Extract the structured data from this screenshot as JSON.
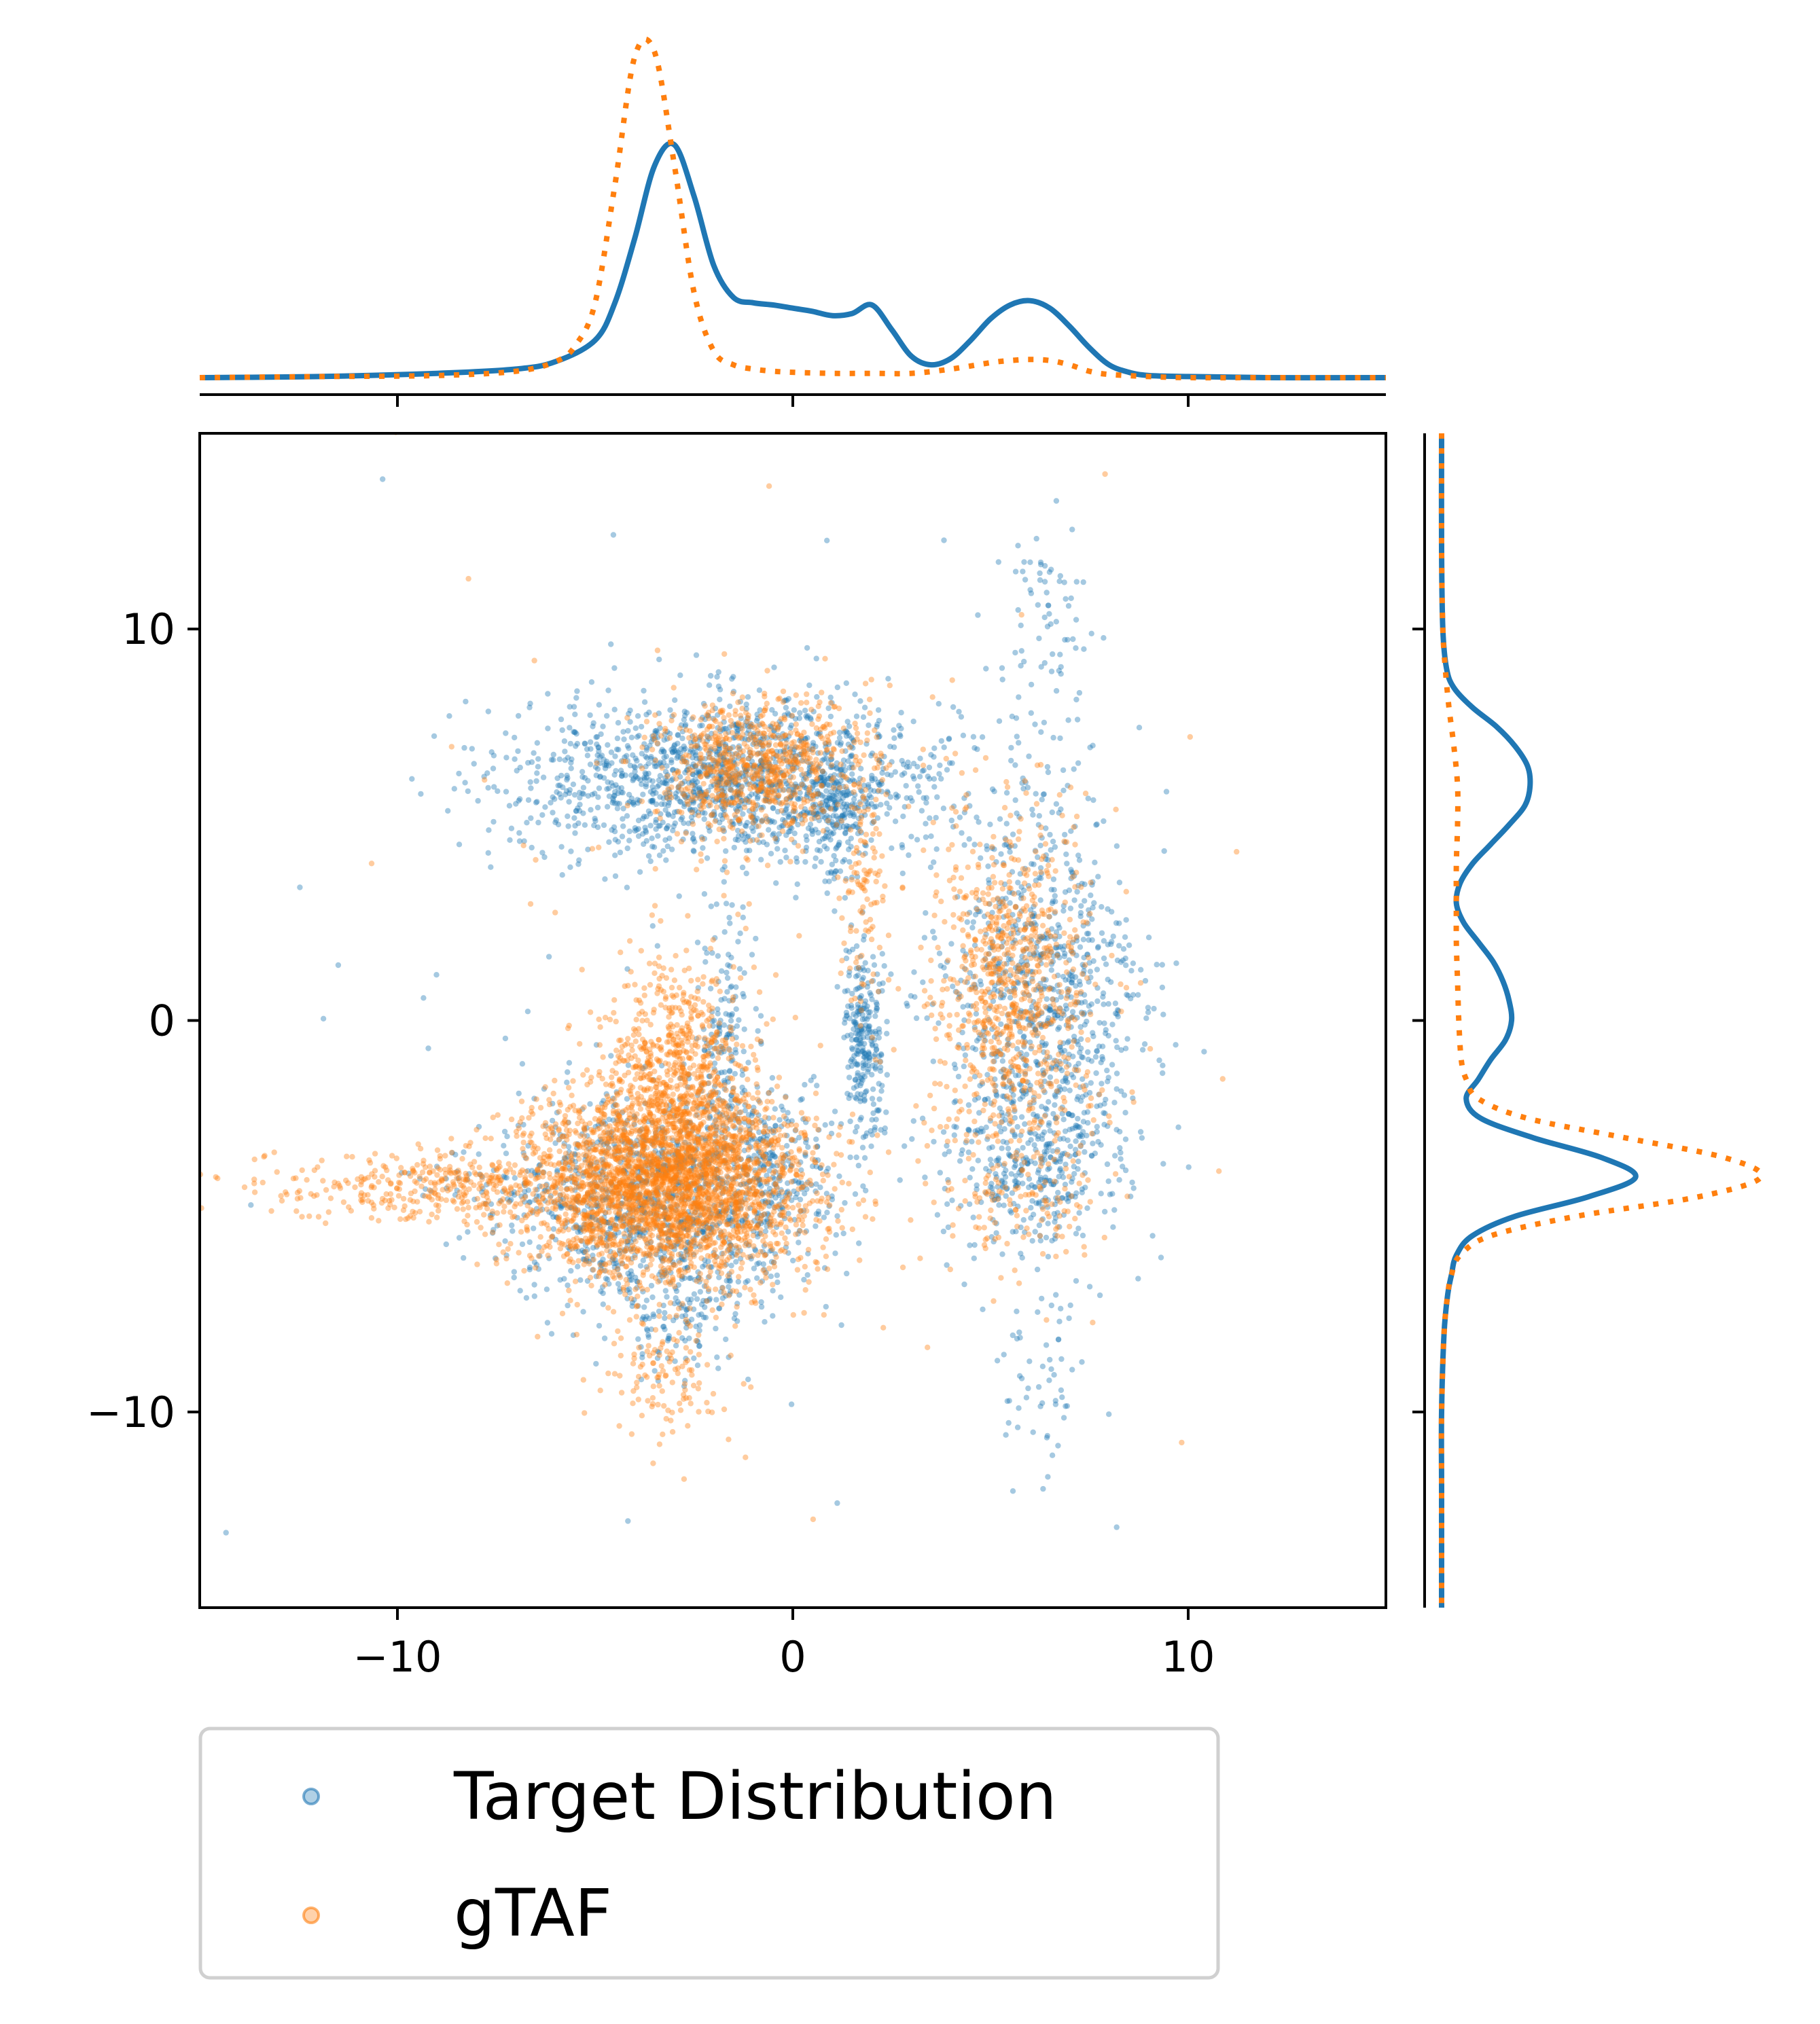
{
  "chart_data": {
    "type": "scatter",
    "title": "",
    "xlabel": "",
    "ylabel": "",
    "xlim": [
      -15,
      15
    ],
    "ylim": [
      -15,
      15
    ],
    "x_ticks": [
      {
        "value": -10,
        "label": "−10"
      },
      {
        "value": 0,
        "label": "0"
      },
      {
        "value": 10,
        "label": "10"
      }
    ],
    "y_ticks": [
      {
        "value": 10,
        "label": "10"
      },
      {
        "value": 0,
        "label": "0"
      },
      {
        "value": -10,
        "label": "−10"
      }
    ],
    "grid": false,
    "legend_position": "below-left",
    "series": [
      {
        "name": "Target Distribution",
        "color": "#1f77b4",
        "marker": "dot",
        "alpha": 0.4,
        "clusters": [
          {
            "center": [
              -1.5,
              6.2
            ],
            "spread": [
              2.8,
              1.0
            ],
            "count": 1500
          },
          {
            "center": [
              1.0,
              5.2
            ],
            "spread": [
              0.4,
              0.8
            ],
            "count": 150
          },
          {
            "center": [
              6.3,
              0.3
            ],
            "spread": [
              1.3,
              2.6
            ],
            "count": 900
          },
          {
            "center": [
              6.0,
              -3.8
            ],
            "spread": [
              1.0,
              1.0
            ],
            "count": 250
          },
          {
            "center": [
              -3.2,
              -4.5
            ],
            "spread": [
              1.9,
              1.3
            ],
            "count": 1100
          },
          {
            "center": [
              -3.0,
              -7.5
            ],
            "spread": [
              0.8,
              0.8
            ],
            "count": 120
          },
          {
            "center": [
              -1.7,
              -0.5
            ],
            "spread": [
              0.35,
              1.6
            ],
            "count": 150
          },
          {
            "center": [
              -0.5,
              -3.8
            ],
            "spread": [
              0.7,
              0.9
            ],
            "count": 150
          },
          {
            "center": [
              1.8,
              -0.4
            ],
            "spread": [
              0.25,
              1.3
            ],
            "count": 260
          },
          {
            "center": [
              6.4,
              9.3
            ],
            "spread": [
              0.6,
              1.6
            ],
            "count": 80
          },
          {
            "center": [
              6.3,
              -9.0
            ],
            "spread": [
              0.6,
              1.5
            ],
            "count": 60
          },
          {
            "center": [
              -7.0,
              -4.4
            ],
            "spread": [
              1.6,
              0.5
            ],
            "count": 60
          },
          {
            "center": [
              0,
              0
            ],
            "spread": [
              5.5,
              5.5
            ],
            "count": 90
          }
        ]
      },
      {
        "name": "gTAF",
        "color": "#ff7f0e",
        "marker": "dot",
        "alpha": 0.4,
        "clusters": [
          {
            "center": [
              -3.2,
              -4.2
            ],
            "spread": [
              1.8,
              1.2
            ],
            "count": 2800
          },
          {
            "center": [
              -3.0,
              -1.5
            ],
            "spread": [
              0.9,
              1.5
            ],
            "count": 700
          },
          {
            "center": [
              -8.5,
              -4.3
            ],
            "spread": [
              2.8,
              0.5
            ],
            "count": 450
          },
          {
            "center": [
              -1.0,
              6.5
            ],
            "spread": [
              1.3,
              0.9
            ],
            "count": 750
          },
          {
            "center": [
              1.8,
              3.5
            ],
            "spread": [
              0.3,
              1.8
            ],
            "count": 120
          },
          {
            "center": [
              5.6,
              0.6
            ],
            "spread": [
              1.0,
              2.2
            ],
            "count": 800
          },
          {
            "center": [
              -3.3,
              -9.2
            ],
            "spread": [
              0.8,
              0.9
            ],
            "count": 120
          },
          {
            "center": [
              5.8,
              -4.5
            ],
            "spread": [
              1.0,
              1.0
            ],
            "count": 120
          },
          {
            "center": [
              0,
              0
            ],
            "spread": [
              5.5,
              5.5
            ],
            "count": 100
          }
        ]
      }
    ],
    "marginal_x": {
      "type": "line",
      "series": [
        {
          "name": "Target Distribution",
          "color": "#1f77b4",
          "style": "solid",
          "x": [
            -15,
            -12,
            -9,
            -7,
            -6,
            -5,
            -4.5,
            -4,
            -3.5,
            -3,
            -2.5,
            -2,
            -1.5,
            -1,
            -0.5,
            0,
            0.5,
            1,
            1.5,
            2,
            2.5,
            3,
            3.5,
            4,
            4.5,
            5,
            5.5,
            6,
            6.5,
            7,
            7.5,
            8,
            8.5,
            9,
            10,
            12,
            15
          ],
          "y": [
            0.0,
            0.001,
            0.004,
            0.008,
            0.015,
            0.035,
            0.07,
            0.13,
            0.198,
            0.218,
            0.17,
            0.105,
            0.075,
            0.07,
            0.068,
            0.065,
            0.062,
            0.058,
            0.06,
            0.068,
            0.045,
            0.02,
            0.012,
            0.018,
            0.035,
            0.055,
            0.068,
            0.072,
            0.065,
            0.048,
            0.028,
            0.012,
            0.005,
            0.002,
            0.001,
            0.0,
            0.0
          ]
        },
        {
          "name": "gTAF",
          "color": "#ff7f0e",
          "style": "dotted",
          "x": [
            -15,
            -12,
            -9,
            -7,
            -6,
            -5.5,
            -5,
            -4.5,
            -4,
            -3.5,
            -3,
            -2.5,
            -2,
            -1.5,
            -1,
            -0.5,
            0,
            1,
            2,
            3,
            4,
            5,
            5.5,
            6,
            6.5,
            7,
            7.5,
            8,
            9,
            10,
            12,
            15
          ],
          "y": [
            0.0,
            0.001,
            0.002,
            0.006,
            0.015,
            0.03,
            0.07,
            0.18,
            0.3,
            0.305,
            0.2,
            0.08,
            0.025,
            0.012,
            0.008,
            0.006,
            0.005,
            0.004,
            0.004,
            0.004,
            0.008,
            0.014,
            0.016,
            0.017,
            0.016,
            0.012,
            0.006,
            0.003,
            0.001,
            0.0,
            0.0,
            0.0
          ]
        }
      ]
    },
    "marginal_y": {
      "type": "line",
      "series": [
        {
          "name": "Target Distribution",
          "color": "#1f77b4",
          "style": "solid",
          "y": [
            15,
            12,
            10,
            9,
            8.5,
            8,
            7.5,
            7,
            6.5,
            6,
            5.5,
            5,
            4.5,
            4,
            3.5,
            3,
            2.5,
            2,
            1.5,
            1,
            0.5,
            0,
            -0.5,
            -1,
            -1.5,
            -2,
            -2.5,
            -3,
            -3.5,
            -4,
            -4.5,
            -5,
            -5.5,
            -6,
            -6.5,
            -7,
            -8,
            -10,
            -12,
            -15
          ],
          "x": [
            0.0,
            0.0,
            0.001,
            0.004,
            0.01,
            0.025,
            0.045,
            0.06,
            0.07,
            0.072,
            0.068,
            0.055,
            0.04,
            0.025,
            0.015,
            0.012,
            0.018,
            0.03,
            0.042,
            0.05,
            0.055,
            0.057,
            0.052,
            0.04,
            0.03,
            0.02,
            0.032,
            0.075,
            0.13,
            0.158,
            0.12,
            0.06,
            0.025,
            0.012,
            0.008,
            0.005,
            0.002,
            0.0,
            0.0,
            0.0
          ]
        },
        {
          "name": "gTAF",
          "color": "#ff7f0e",
          "style": "dotted",
          "y": [
            15,
            12,
            10,
            9,
            8,
            7,
            6,
            5,
            4,
            3,
            2,
            1,
            0,
            -1,
            -1.5,
            -2,
            -2.5,
            -3,
            -3.5,
            -4,
            -4.5,
            -5,
            -5.5,
            -6,
            -6.5,
            -7,
            -8,
            -10,
            -12,
            -15
          ],
          "x": [
            0.0,
            0.0,
            0.001,
            0.003,
            0.006,
            0.01,
            0.013,
            0.013,
            0.012,
            0.012,
            0.012,
            0.013,
            0.014,
            0.016,
            0.02,
            0.03,
            0.07,
            0.15,
            0.23,
            0.26,
            0.21,
            0.11,
            0.04,
            0.015,
            0.008,
            0.005,
            0.002,
            0.0,
            0.0,
            0.0
          ]
        }
      ]
    }
  }
}
